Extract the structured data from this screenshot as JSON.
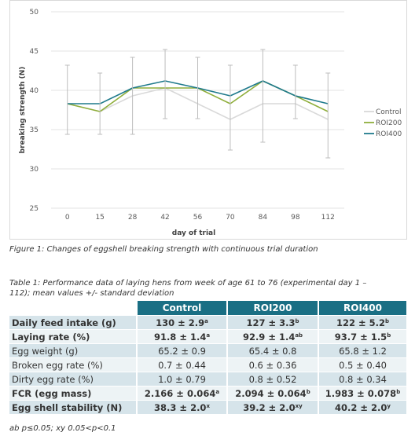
{
  "chart_data": {
    "type": "line",
    "x": [
      0,
      15,
      28,
      42,
      56,
      70,
      84,
      98,
      112
    ],
    "xtick_labels": [
      "0",
      "15",
      "28",
      "42",
      "56",
      "70",
      "84",
      "98",
      "112"
    ],
    "xlabel": "day of trial",
    "ylabel": "breaking strength (N)",
    "ylim": [
      25,
      50
    ],
    "yticks": [
      25,
      30,
      35,
      40,
      45,
      50
    ],
    "grid": "horizontal",
    "legend_position": "right",
    "error_bars": {
      "lower": [
        34.4,
        34.4,
        34.4,
        36.4,
        36.4,
        32.4,
        33.4,
        36.4,
        31.4
      ],
      "upper": [
        43.2,
        42.2,
        44.2,
        45.2,
        44.2,
        43.2,
        45.2,
        43.2,
        42.2
      ]
    },
    "series": [
      {
        "name": "Control",
        "color": "#d9d9d9",
        "values": [
          38.3,
          37.3,
          39.3,
          40.3,
          38.3,
          36.3,
          38.3,
          38.3,
          36.3
        ]
      },
      {
        "name": "ROI200",
        "color": "#8fae3b",
        "values": [
          38.3,
          37.3,
          40.3,
          40.3,
          40.3,
          38.3,
          41.2,
          39.3,
          37.3
        ]
      },
      {
        "name": "ROI400",
        "color": "#1f7a8c",
        "values": [
          38.3,
          38.3,
          40.3,
          41.2,
          40.3,
          39.3,
          41.2,
          39.3,
          38.3
        ]
      }
    ]
  },
  "figure_caption": "Figure 1: Changes of eggshell breaking strength with continuous trial duration",
  "table": {
    "caption": "Table 1: Performance data of laying hens from week of age 61 to 76 (experimental day 1 – 112); mean values +/- standard deviation",
    "headers": [
      "",
      "Control",
      "ROI200",
      "ROI400"
    ],
    "rows": [
      {
        "label": "Daily feed intake (g)",
        "bold": true,
        "cells": [
          {
            "v": "130 ± 2.9",
            "s": "a"
          },
          {
            "v": "127 ± 3.3",
            "s": "b"
          },
          {
            "v": "122 ± 5.2",
            "s": "b"
          }
        ]
      },
      {
        "label": "Laying rate (%)",
        "bold": true,
        "cells": [
          {
            "v": "91.8 ± 1.4",
            "s": "a"
          },
          {
            "v": "92.9 ± 1.4",
            "s": "ab"
          },
          {
            "v": "93.7 ± 1.5",
            "s": "b"
          }
        ]
      },
      {
        "label": "Egg weight (g)",
        "bold": false,
        "cells": [
          {
            "v": "65.2 ± 0.9",
            "s": ""
          },
          {
            "v": "65.4 ± 0.8",
            "s": ""
          },
          {
            "v": "65.8 ± 1.2",
            "s": ""
          }
        ]
      },
      {
        "label": "Broken egg rate (%)",
        "bold": false,
        "cells": [
          {
            "v": "0.7 ± 0.44",
            "s": ""
          },
          {
            "v": "0.6 ± 0.36",
            "s": ""
          },
          {
            "v": "0.5 ± 0.40",
            "s": ""
          }
        ]
      },
      {
        "label": "Dirty egg rate (%)",
        "bold": false,
        "cells": [
          {
            "v": "1.0 ± 0.79",
            "s": ""
          },
          {
            "v": "0.8 ± 0.52",
            "s": ""
          },
          {
            "v": "0.8 ± 0.34",
            "s": ""
          }
        ]
      },
      {
        "label": "FCR (egg mass)",
        "bold": true,
        "cells": [
          {
            "v": "2.166 ± 0.064",
            "s": "a"
          },
          {
            "v": "2.094 ± 0.064",
            "s": "b"
          },
          {
            "v": "1.983 ± 0.078",
            "s": "b"
          }
        ]
      },
      {
        "label": "Egg shell stability (N)",
        "bold": true,
        "cells": [
          {
            "v": "38.3 ± 2.0",
            "s": "x"
          },
          {
            "v": "39.2 ± 2.0",
            "s": "xy"
          },
          {
            "v": "40.2 ± 2.0",
            "s": "y"
          }
        ]
      }
    ]
  },
  "footnote": "ab p≤0.05; xy 0.05<p<0.1"
}
